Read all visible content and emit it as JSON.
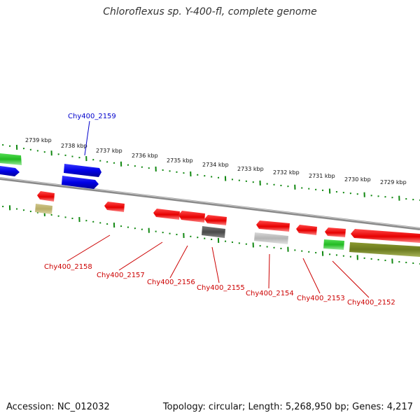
{
  "title": "Chloroflexus sp. Y-400-fl, complete genome",
  "footer": {
    "accession": "Accession: NC_012032",
    "stats": "Topology: circular; Length: 5,268,950 bp; Genes: 4,217"
  },
  "scale_labels": [
    "2739 kbp",
    "2738 kbp",
    "2737 kbp",
    "2736 kbp",
    "2735 kbp",
    "2734 kbp",
    "2733 kbp",
    "2732 kbp",
    "2731 kbp",
    "2730 kbp",
    "2729 kbp"
  ],
  "gene_labels": [
    {
      "id": "Chy400_2159",
      "strand": "forward",
      "color": "#0000cc"
    },
    {
      "id": "Chy400_2158",
      "strand": "reverse",
      "color": "#cc0000"
    },
    {
      "id": "Chy400_2157",
      "strand": "reverse",
      "color": "#cc0000"
    },
    {
      "id": "Chy400_2156",
      "strand": "reverse",
      "color": "#cc0000"
    },
    {
      "id": "Chy400_2155",
      "strand": "reverse",
      "color": "#cc0000"
    },
    {
      "id": "Chy400_2154",
      "strand": "reverse",
      "color": "#cc0000"
    },
    {
      "id": "Chy400_2153",
      "strand": "reverse",
      "color": "#cc0000"
    },
    {
      "id": "Chy400_2152",
      "strand": "reverse",
      "color": "#cc0000"
    }
  ],
  "colors": {
    "forward_cds": "#1010ee",
    "reverse_cds": "#ee1010",
    "rna_green": "#22bb22",
    "gc_olive": "#6b7a1e",
    "gc_khaki": "#b8b070",
    "gray_dark": "#555555",
    "gray_light": "#bbbbbb",
    "backbone": "#888888",
    "tick_green": "#118811"
  }
}
